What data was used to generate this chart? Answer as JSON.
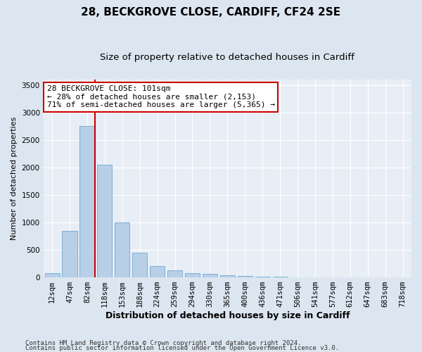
{
  "title1": "28, BECKGROVE CLOSE, CARDIFF, CF24 2SE",
  "title2": "Size of property relative to detached houses in Cardiff",
  "xlabel": "Distribution of detached houses by size in Cardiff",
  "ylabel": "Number of detached properties",
  "categories": [
    "12sqm",
    "47sqm",
    "82sqm",
    "118sqm",
    "153sqm",
    "188sqm",
    "224sqm",
    "259sqm",
    "294sqm",
    "330sqm",
    "365sqm",
    "400sqm",
    "436sqm",
    "471sqm",
    "506sqm",
    "541sqm",
    "577sqm",
    "612sqm",
    "647sqm",
    "683sqm",
    "718sqm"
  ],
  "values": [
    75,
    850,
    2750,
    2050,
    1000,
    450,
    200,
    130,
    75,
    60,
    40,
    30,
    20,
    10,
    5,
    3,
    2,
    1,
    1,
    0,
    0
  ],
  "bar_color": "#b8cfe8",
  "bar_edge_color": "#7aafd4",
  "red_line_color": "#cc0000",
  "red_line_bar_index": 2,
  "ylim": [
    0,
    3600
  ],
  "yticks": [
    0,
    500,
    1000,
    1500,
    2000,
    2500,
    3000,
    3500
  ],
  "annotation_line1": "28 BECKGROVE CLOSE: 101sqm",
  "annotation_line2": "← 28% of detached houses are smaller (2,153)",
  "annotation_line3": "71% of semi-detached houses are larger (5,365) →",
  "annotation_box_color": "#ffffff",
  "annotation_box_edge": "#cc0000",
  "footer1": "Contains HM Land Registry data © Crown copyright and database right 2024.",
  "footer2": "Contains public sector information licensed under the Open Government Licence v3.0.",
  "bg_color": "#dce6f0",
  "plot_bg_color": "#e8eef5",
  "grid_color": "#ffffff",
  "title1_fontsize": 11,
  "title2_fontsize": 9.5,
  "xlabel_fontsize": 9,
  "ylabel_fontsize": 8,
  "tick_fontsize": 7.5,
  "annotation_fontsize": 8,
  "footer_fontsize": 6.5
}
